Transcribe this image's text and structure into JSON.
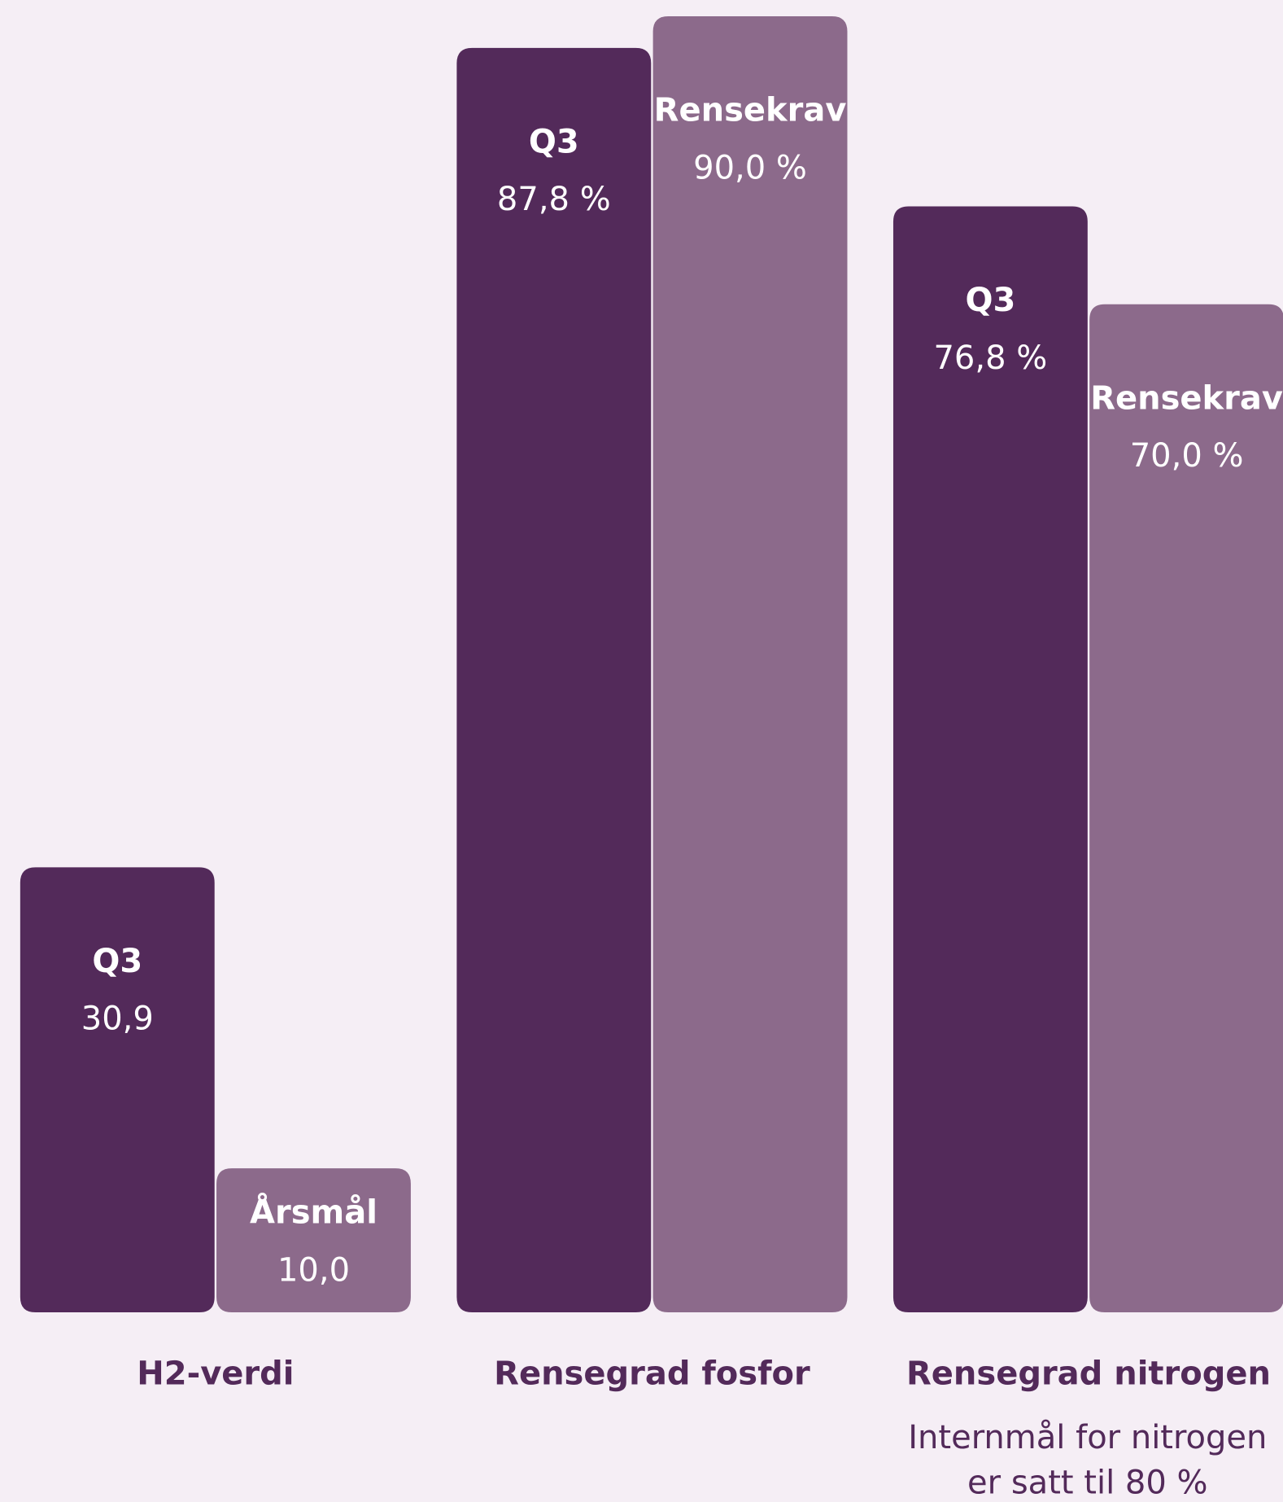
{
  "chart_data": {
    "type": "bar",
    "categories": [
      "H2-verdi",
      "Rensegrad fosfor",
      "Rensegrad nitrogen"
    ],
    "series": [
      {
        "labels": [
          "Q3",
          "Q3",
          "Q3"
        ],
        "color": "#532a5a",
        "values": [
          30.9,
          87.8,
          76.8
        ],
        "value_labels": [
          "30,9",
          "87,8 %",
          "76,8 %"
        ]
      },
      {
        "labels": [
          "Årsmål",
          "Rensekrav",
          "Rensekrav"
        ],
        "color": "#8c6a8b",
        "values": [
          10.0,
          90.0,
          70.0
        ],
        "value_labels": [
          "10,0",
          "90,0 %",
          "70,0 %"
        ]
      }
    ],
    "ylim": [
      0,
      90
    ],
    "annotation": "Internmål for nitrogen er satt til 80 %"
  }
}
